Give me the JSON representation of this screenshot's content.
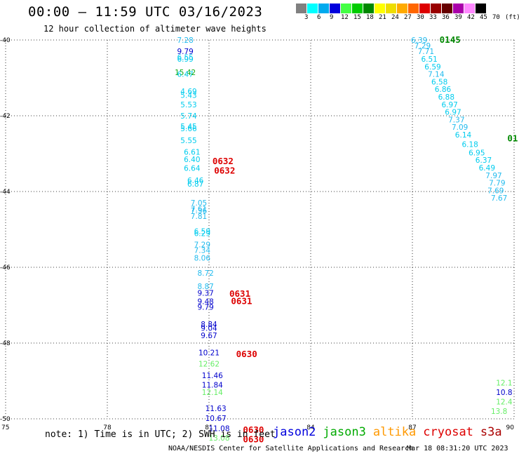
{
  "header": {
    "title": "00:00 – 11:59 UTC 03/16/2023",
    "subtitle": "12 hour collection of altimeter wave heights"
  },
  "colorbar": {
    "labels": [
      "3",
      "6",
      "9",
      "12",
      "15",
      "18",
      "21",
      "24",
      "27",
      "30",
      "33",
      "36",
      "39",
      "42",
      "45",
      "70",
      "(ft)"
    ],
    "colors": [
      "#808080",
      "#00ffff",
      "#00aaee",
      "#0000dd",
      "#44ff44",
      "#00cc00",
      "#008800",
      "#ffff00",
      "#eedd00",
      "#ffaa00",
      "#ff6600",
      "#dd0000",
      "#990000",
      "#660000",
      "#aa00aa",
      "#ff88ff",
      "#000000"
    ]
  },
  "chart_data": {
    "type": "scatter",
    "title": "00:00 – 11:59 UTC 03/16/2023",
    "subtitle": "12 hour collection of altimeter wave heights",
    "xlim": [
      75,
      90
    ],
    "ylim": [
      -50,
      -40
    ],
    "x_ticks": [
      "75",
      "78",
      "81",
      "84",
      "87",
      "90"
    ],
    "y_ticks": [
      "-40",
      "-42",
      "-44",
      "-46",
      "-48",
      "-50"
    ],
    "grid": true,
    "points": [
      {
        "lon": 80.3,
        "lat": -40.0,
        "label": "7.28",
        "color": "#22bbee"
      },
      {
        "lon": 80.3,
        "lat": -40.3,
        "label": "9.79",
        "color": "#0000cc"
      },
      {
        "lon": 80.3,
        "lat": -40.45,
        "label": "6.55",
        "color": "#00ccee"
      },
      {
        "lon": 80.3,
        "lat": -40.5,
        "label": "6.99",
        "color": "#00ccee"
      },
      {
        "lon": 80.3,
        "lat": -40.85,
        "label": "15.42",
        "color": "#11aa11"
      },
      {
        "lon": 80.3,
        "lat": -40.9,
        "label": "6.47",
        "color": "#00ccee"
      },
      {
        "lon": 80.4,
        "lat": -41.35,
        "label": "4.69",
        "color": "#00ccee"
      },
      {
        "lon": 80.4,
        "lat": -41.45,
        "label": "5.43",
        "color": "#00ccee"
      },
      {
        "lon": 80.4,
        "lat": -41.7,
        "label": "5.53",
        "color": "#00ccee"
      },
      {
        "lon": 80.4,
        "lat": -42.0,
        "label": "5.74",
        "color": "#00ccee"
      },
      {
        "lon": 80.4,
        "lat": -42.28,
        "label": "5.45",
        "color": "#00ccee"
      },
      {
        "lon": 80.4,
        "lat": -42.33,
        "label": "5.66",
        "color": "#00ccee"
      },
      {
        "lon": 80.4,
        "lat": -42.65,
        "label": "5.55",
        "color": "#00ccee"
      },
      {
        "lon": 80.5,
        "lat": -42.95,
        "label": "6.61",
        "color": "#00ccee"
      },
      {
        "lon": 80.5,
        "lat": -43.15,
        "label": "6.40",
        "color": "#00ccee"
      },
      {
        "lon": 80.5,
        "lat": -43.38,
        "label": "6.64",
        "color": "#00ccee"
      },
      {
        "lon": 80.6,
        "lat": -43.7,
        "label": "6.46",
        "color": "#00ccee"
      },
      {
        "lon": 80.6,
        "lat": -43.8,
        "label": "6.87",
        "color": "#00ccee"
      },
      {
        "lon": 80.7,
        "lat": -44.3,
        "label": "7.05",
        "color": "#22bbee"
      },
      {
        "lon": 80.7,
        "lat": -44.45,
        "label": "7.61",
        "color": "#22bbee"
      },
      {
        "lon": 80.7,
        "lat": -44.5,
        "label": "7.36",
        "color": "#22bbee"
      },
      {
        "lon": 80.7,
        "lat": -44.65,
        "label": "7.81",
        "color": "#22bbee"
      },
      {
        "lon": 80.8,
        "lat": -45.05,
        "label": "6.59",
        "color": "#00ccee"
      },
      {
        "lon": 80.8,
        "lat": -45.1,
        "label": "6.29",
        "color": "#00ccee"
      },
      {
        "lon": 80.8,
        "lat": -45.4,
        "label": "7.29",
        "color": "#22bbee"
      },
      {
        "lon": 80.8,
        "lat": -45.55,
        "label": "7.34",
        "color": "#22bbee"
      },
      {
        "lon": 80.8,
        "lat": -45.75,
        "label": "8.06",
        "color": "#22bbee"
      },
      {
        "lon": 80.9,
        "lat": -46.15,
        "label": "8.72",
        "color": "#22bbee"
      },
      {
        "lon": 80.9,
        "lat": -46.5,
        "label": "8.87",
        "color": "#22bbee"
      },
      {
        "lon": 80.9,
        "lat": -46.68,
        "label": "9.37",
        "color": "#0000cc"
      },
      {
        "lon": 80.9,
        "lat": -46.9,
        "label": "9.48",
        "color": "#0000cc"
      },
      {
        "lon": 80.9,
        "lat": -47.05,
        "label": "9.79",
        "color": "#0000cc"
      },
      {
        "lon": 81.0,
        "lat": -47.5,
        "label": "8.84",
        "color": "#0000cc"
      },
      {
        "lon": 81.0,
        "lat": -47.6,
        "label": "9.04",
        "color": "#0000cc"
      },
      {
        "lon": 81.0,
        "lat": -47.8,
        "label": "9.67",
        "color": "#0000cc"
      },
      {
        "lon": 81.0,
        "lat": -48.25,
        "label": "10.21",
        "color": "#0000cc"
      },
      {
        "lon": 81.0,
        "lat": -48.55,
        "label": "12.62",
        "color": "#66ee66"
      },
      {
        "lon": 81.1,
        "lat": -48.85,
        "label": "11.46",
        "color": "#0000cc"
      },
      {
        "lon": 81.1,
        "lat": -49.1,
        "label": "11.84",
        "color": "#0000cc"
      },
      {
        "lon": 81.1,
        "lat": -49.3,
        "label": "12.14",
        "color": "#66ee66"
      },
      {
        "lon": 81.2,
        "lat": -49.72,
        "label": "11.63",
        "color": "#0000cc"
      },
      {
        "lon": 81.2,
        "lat": -49.98,
        "label": "10.67",
        "color": "#0000cc"
      },
      {
        "lon": 81.3,
        "lat": -50.25,
        "label": "11.08",
        "color": "#0000cc"
      },
      {
        "lon": 81.3,
        "lat": -50.5,
        "label": "13.08",
        "color": "#66ee66"
      },
      {
        "lon": 87.2,
        "lat": -40.0,
        "label": "6.39",
        "color": "#22bbee"
      },
      {
        "lon": 87.3,
        "lat": -40.15,
        "label": "7.29",
        "color": "#22bbee"
      },
      {
        "lon": 87.4,
        "lat": -40.3,
        "label": "7.71",
        "color": "#22bbee"
      },
      {
        "lon": 87.5,
        "lat": -40.5,
        "label": "6.51",
        "color": "#00ccee"
      },
      {
        "lon": 87.6,
        "lat": -40.7,
        "label": "6.59",
        "color": "#00ccee"
      },
      {
        "lon": 87.7,
        "lat": -40.9,
        "label": "7.14",
        "color": "#22bbee"
      },
      {
        "lon": 87.8,
        "lat": -41.1,
        "label": "6.58",
        "color": "#00ccee"
      },
      {
        "lon": 87.9,
        "lat": -41.3,
        "label": "6.86",
        "color": "#00ccee"
      },
      {
        "lon": 88.0,
        "lat": -41.5,
        "label": "6.88",
        "color": "#00ccee"
      },
      {
        "lon": 88.1,
        "lat": -41.7,
        "label": "6.97",
        "color": "#00ccee"
      },
      {
        "lon": 88.2,
        "lat": -41.9,
        "label": "6.97",
        "color": "#00ccee"
      },
      {
        "lon": 88.3,
        "lat": -42.1,
        "label": "7.37",
        "color": "#22bbee"
      },
      {
        "lon": 88.4,
        "lat": -42.3,
        "label": "7.09",
        "color": "#22bbee"
      },
      {
        "lon": 88.5,
        "lat": -42.5,
        "label": "6.14",
        "color": "#00ccee"
      },
      {
        "lon": 88.7,
        "lat": -42.75,
        "label": "6.18",
        "color": "#00ccee"
      },
      {
        "lon": 88.9,
        "lat": -42.97,
        "label": "6.95",
        "color": "#00ccee"
      },
      {
        "lon": 89.1,
        "lat": -43.17,
        "label": "6.37",
        "color": "#00ccee"
      },
      {
        "lon": 89.2,
        "lat": -43.37,
        "label": "6.49",
        "color": "#00ccee"
      },
      {
        "lon": 89.4,
        "lat": -43.57,
        "label": "7.97",
        "color": "#22bbee"
      },
      {
        "lon": 89.5,
        "lat": -43.77,
        "label": "7.79",
        "color": "#22bbee"
      },
      {
        "lon": 89.7,
        "lat": -43.97,
        "label": "7.69",
        "color": "#22bbee"
      },
      {
        "lon": 89.8,
        "lat": -44.17,
        "label": "7.67",
        "color": "#22bbee"
      },
      {
        "lon": 89.95,
        "lat": -49.05,
        "label": "12.1",
        "color": "#66ee66"
      },
      {
        "lon": 89.95,
        "lat": -49.3,
        "label": "10.8",
        "color": "#0000cc"
      },
      {
        "lon": 89.95,
        "lat": -49.55,
        "label": "12.4",
        "color": "#66ee66"
      },
      {
        "lon": 89.8,
        "lat": -49.8,
        "label": "13.8",
        "color": "#66ee66"
      }
    ],
    "time_labels": [
      {
        "lon": 81.1,
        "lat": -43.2,
        "label": "0632",
        "color": "#dd0000"
      },
      {
        "lon": 81.15,
        "lat": -43.45,
        "label": "0632",
        "color": "#dd0000"
      },
      {
        "lon": 81.6,
        "lat": -46.7,
        "label": "0631",
        "color": "#dd0000"
      },
      {
        "lon": 81.65,
        "lat": -46.9,
        "label": "0631",
        "color": "#dd0000"
      },
      {
        "lon": 81.8,
        "lat": -48.3,
        "label": "0630",
        "color": "#dd0000"
      },
      {
        "lon": 82.0,
        "lat": -50.3,
        "label": "0630",
        "color": "#dd0000"
      },
      {
        "lon": 82.0,
        "lat": -50.55,
        "label": "0630",
        "color": "#dd0000"
      },
      {
        "lon": 87.8,
        "lat": -40.0,
        "label": "0145",
        "color": "#008800"
      },
      {
        "lon": 89.8,
        "lat": -42.6,
        "label": "01",
        "color": "#008800"
      }
    ]
  },
  "footer": {
    "note": "note:  1) Time is in UTC;  2) SWH is in feet",
    "satellites": [
      {
        "name": "jason2",
        "color": "#0000dd"
      },
      {
        "name": "jason3",
        "color": "#00aa00"
      },
      {
        "name": "altika",
        "color": "#ff9900"
      },
      {
        "name": "cryosat",
        "color": "#dd0000"
      },
      {
        "name": "s3a",
        "color": "#aa0000"
      }
    ],
    "credit": "NOAA/NESDIS Center for Satellite Applications and Research",
    "timestamp": "Mar 18 08:31:20 UTC 2023"
  }
}
